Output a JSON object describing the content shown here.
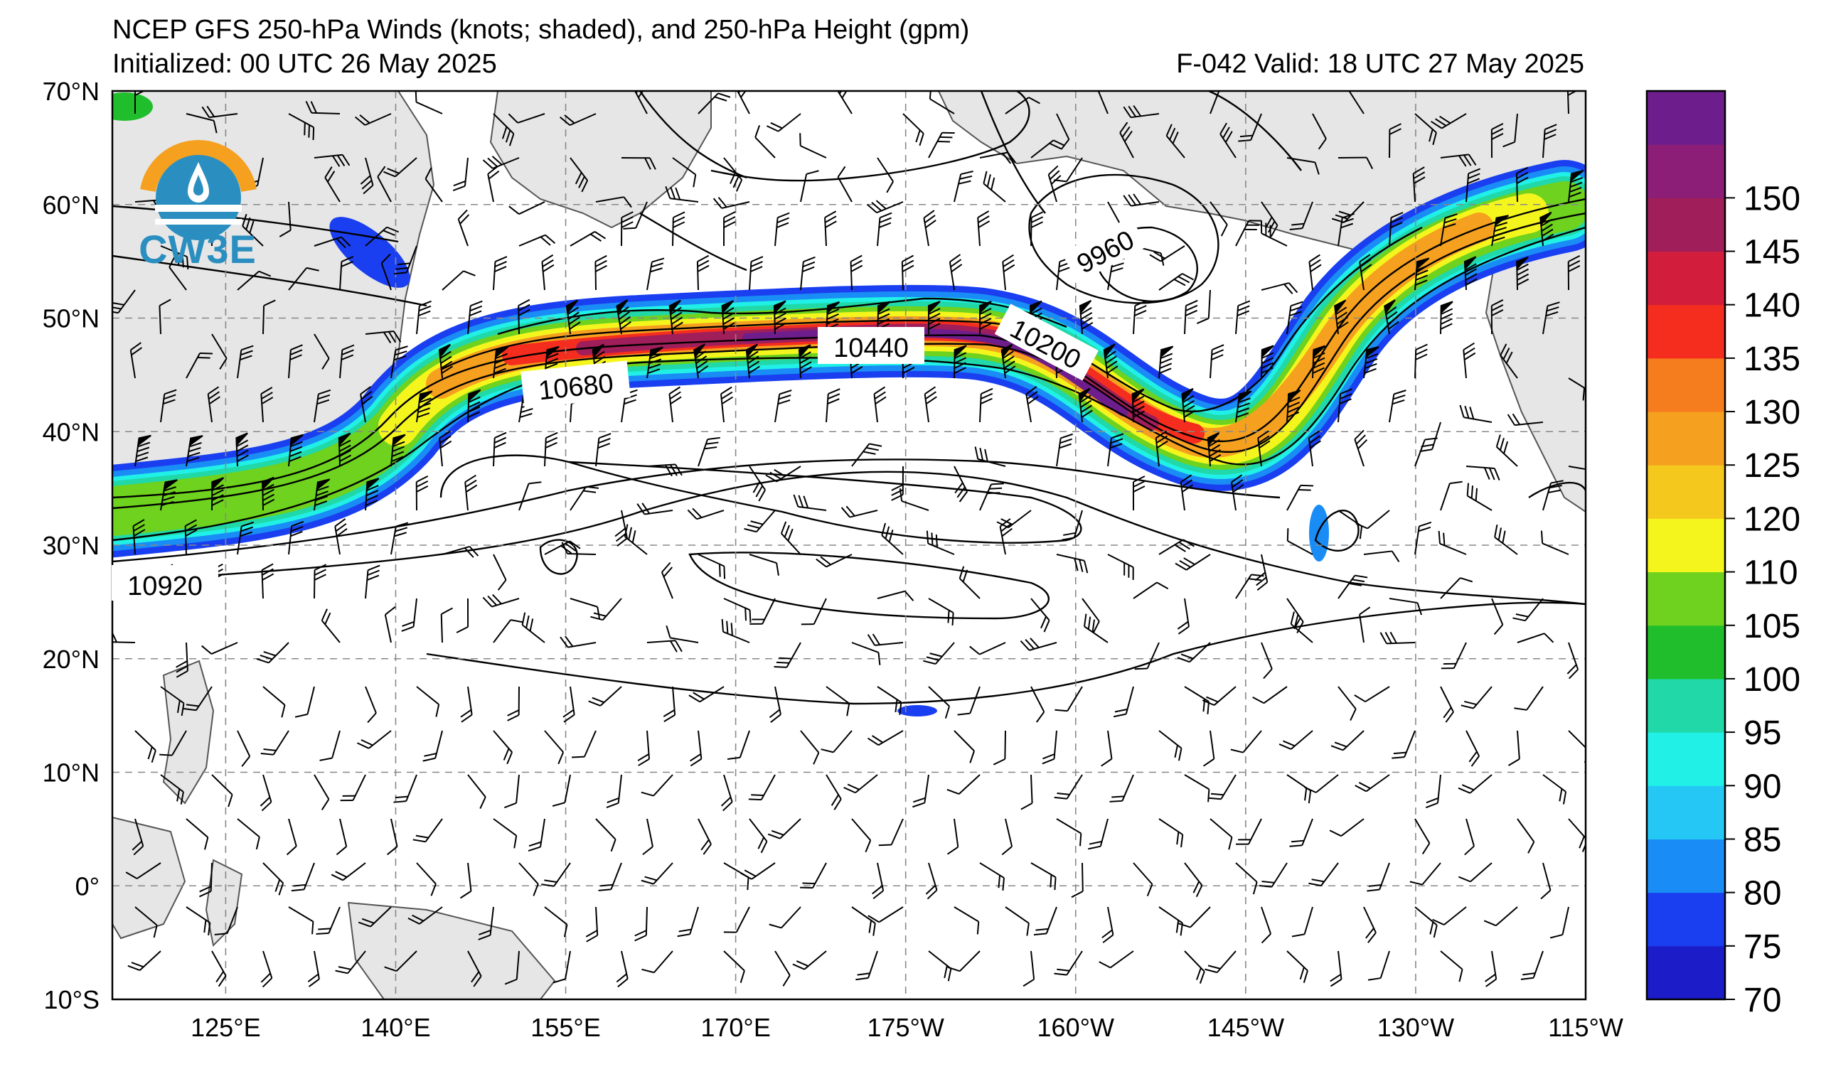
{
  "header": {
    "title": "NCEP GFS 250-hPa Winds (knots; shaded), and 250-hPa Height (gpm)",
    "initialized": "Initialized: 00 UTC 26 May 2025",
    "valid": "F-042  Valid: 18 UTC 27 May 2025"
  },
  "logo": {
    "text": "CW3E",
    "icon": "cw3e-logo-icon"
  },
  "map": {
    "lon_labels": [
      "125°E",
      "140°E",
      "155°E",
      "170°E",
      "175°W",
      "160°W",
      "145°W",
      "130°W",
      "115°W"
    ],
    "lat_labels": [
      "70°N",
      "60°N",
      "50°N",
      "40°N",
      "30°N",
      "20°N",
      "10°N",
      "0°",
      "10°S"
    ],
    "lon_range": [
      115,
      245
    ],
    "lat_range": [
      -10,
      70
    ],
    "grid": true,
    "land_color": "#e6e6e6"
  },
  "contour_labels": [
    "9960",
    "10200",
    "10440",
    "10680",
    "10920"
  ],
  "colorbar": {
    "labels": [
      "70",
      "75",
      "80",
      "85",
      "90",
      "95",
      "100",
      "105",
      "110",
      "120",
      "125",
      "130",
      "135",
      "140",
      "145",
      "150"
    ],
    "colors": [
      "#1c1cc8",
      "#1a3ff0",
      "#1a8cf5",
      "#25c8f5",
      "#20f0e6",
      "#20d8a8",
      "#20be2c",
      "#6ed21e",
      "#f5f51e",
      "#f5c81e",
      "#f5a01e",
      "#f57d1e",
      "#f52d1e",
      "#d21e3c",
      "#a01e5a",
      "#8c1e78",
      "#6e1e8c"
    ]
  }
}
